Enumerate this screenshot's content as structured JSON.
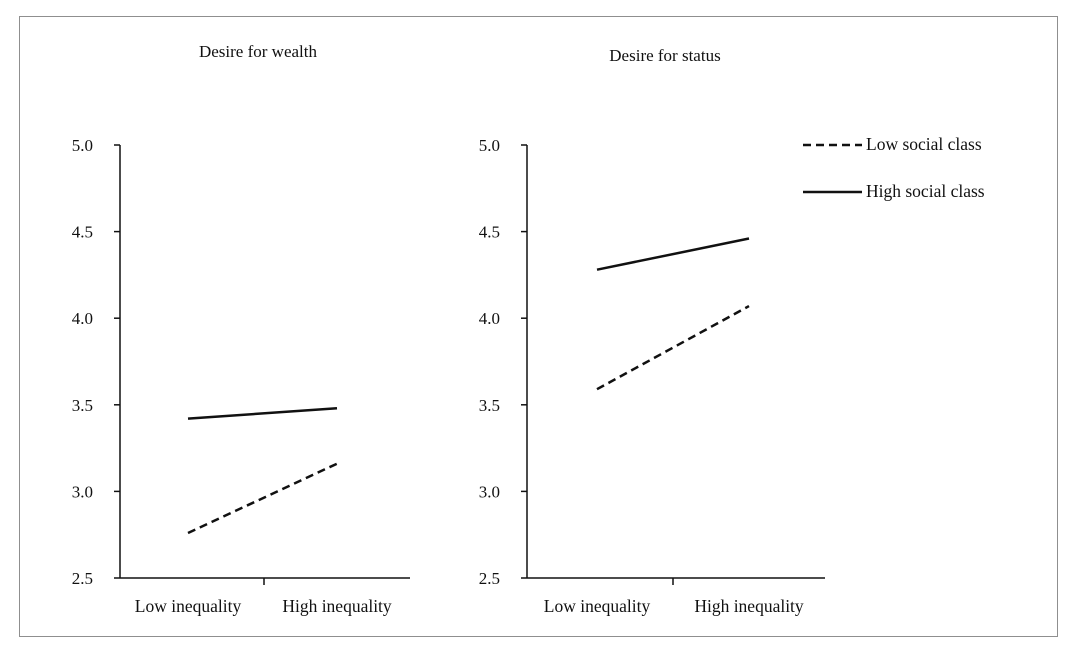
{
  "chart_data": [
    {
      "type": "line",
      "title": "Desire for wealth",
      "xlabel": "",
      "ylabel": "",
      "categories": [
        "Low inequality",
        "High inequality"
      ],
      "ylim": [
        2.5,
        5.0
      ],
      "yticks": [
        "2.5",
        "3.0",
        "3.5",
        "4.0",
        "4.5",
        "5.0"
      ],
      "series": [
        {
          "name": "Low social class",
          "style": "dashed",
          "values": [
            2.76,
            3.16
          ]
        },
        {
          "name": "High social class",
          "style": "solid",
          "values": [
            3.42,
            3.48
          ]
        }
      ]
    },
    {
      "type": "line",
      "title": "Desire for status",
      "xlabel": "",
      "ylabel": "",
      "categories": [
        "Low inequality",
        "High inequality"
      ],
      "ylim": [
        2.5,
        5.0
      ],
      "yticks": [
        "2.5",
        "3.0",
        "3.5",
        "4.0",
        "4.5",
        "5.0"
      ],
      "series": [
        {
          "name": "Low social class",
          "style": "dashed",
          "values": [
            3.59,
            4.07
          ]
        },
        {
          "name": "High social class",
          "style": "solid",
          "values": [
            4.28,
            4.46
          ]
        }
      ]
    }
  ],
  "legend": {
    "position": "top-right",
    "items": [
      {
        "label": "Low social class",
        "style": "dashed"
      },
      {
        "label": "High social class",
        "style": "solid"
      }
    ]
  },
  "colors": {
    "line": "#111111",
    "axis": "#111111",
    "frame": "#8f8f8f"
  }
}
